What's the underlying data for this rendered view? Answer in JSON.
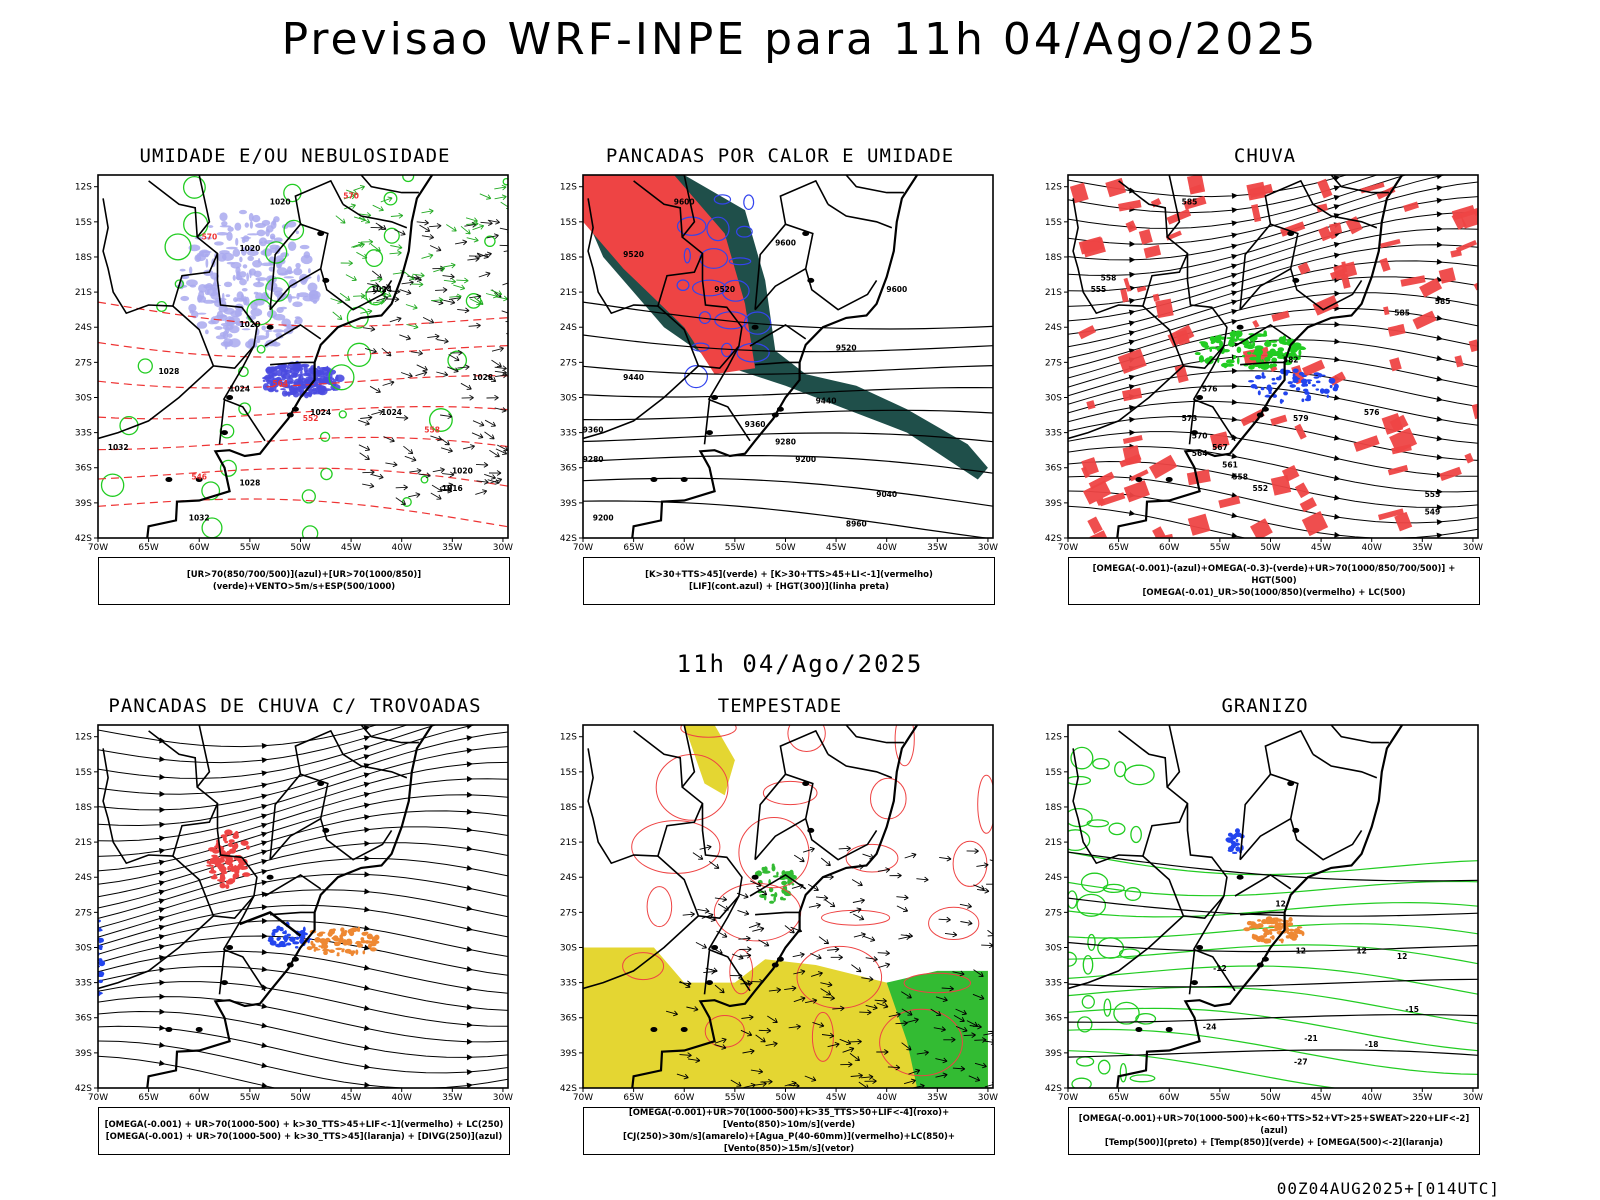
{
  "title": "Previsao WRF-INPE  para 11h 04/Ago/2025",
  "mid_time": "11h 04/Ago/2025",
  "footer": "00Z04AUG2025+[014UTC]",
  "lat_labels": [
    "12S",
    "15S",
    "18S",
    "21S",
    "24S",
    "27S",
    "30S",
    "33S",
    "36S",
    "39S",
    "42S"
  ],
  "lon_labels": [
    "70W",
    "65W",
    "60W",
    "55W",
    "50W",
    "45W",
    "40W",
    "35W",
    "30W"
  ],
  "panels": [
    {
      "title": "UMIDADE E/OU NEBULOSIDADE",
      "legend": [
        "[UR>70(850/700/500)](azul)+[UR>70(1000/850)](verde)+VENTO>5m/s+ESP(500/1000)"
      ],
      "labels": [
        {
          "t": "1020",
          "lat": -17.5,
          "lon": -55,
          "c": "#000"
        },
        {
          "t": "1020",
          "lat": -13.5,
          "lon": -52,
          "c": "#000"
        },
        {
          "t": "1020",
          "lat": -24,
          "lon": -55,
          "c": "#000"
        },
        {
          "t": "1024",
          "lat": -21,
          "lon": -42,
          "c": "#000"
        },
        {
          "t": "1028",
          "lat": -28.5,
          "lon": -32,
          "c": "#000"
        },
        {
          "t": "1024",
          "lat": -29.5,
          "lon": -56,
          "c": "#000"
        },
        {
          "t": "1028",
          "lat": -28,
          "lon": -63,
          "c": "#000"
        },
        {
          "t": "1024",
          "lat": -31.5,
          "lon": -48,
          "c": "#000"
        },
        {
          "t": "1024",
          "lat": -31.5,
          "lon": -41,
          "c": "#000"
        },
        {
          "t": "1032",
          "lat": -34.5,
          "lon": -68,
          "c": "#000"
        },
        {
          "t": "1028",
          "lat": -37.5,
          "lon": -55,
          "c": "#000"
        },
        {
          "t": "1032",
          "lat": -40.5,
          "lon": -60,
          "c": "#000"
        },
        {
          "t": "1016",
          "lat": -38,
          "lon": -35,
          "c": "#000"
        },
        {
          "t": "1020",
          "lat": -36.5,
          "lon": -34,
          "c": "#000"
        },
        {
          "t": "570",
          "lat": -13,
          "lon": -45,
          "c": "#e33"
        },
        {
          "t": "570",
          "lat": -16.5,
          "lon": -59,
          "c": "#e33"
        },
        {
          "t": "564",
          "lat": -29,
          "lon": -52,
          "c": "#e33"
        },
        {
          "t": "552",
          "lat": -32,
          "lon": -49,
          "c": "#e33"
        },
        {
          "t": "558",
          "lat": -33,
          "lon": -37,
          "c": "#e33"
        },
        {
          "t": "546",
          "lat": -37,
          "lon": -60,
          "c": "#e33"
        }
      ]
    },
    {
      "title": "PANCADAS POR CALOR E UMIDADE",
      "legend": [
        "[K>30+TTS>45](verde) + [K>30+TTS>45+LI<-1](vermelho)",
        "[LIF](cont.azul) + [HGT(300)](linha preta)"
      ],
      "labels": [
        {
          "t": "9600",
          "lat": -13.5,
          "lon": -60,
          "c": "#000"
        },
        {
          "t": "9600",
          "lat": -17,
          "lon": -50,
          "c": "#000"
        },
        {
          "t": "9600",
          "lat": -21,
          "lon": -39,
          "c": "#000"
        },
        {
          "t": "9520",
          "lat": -18,
          "lon": -65,
          "c": "#000"
        },
        {
          "t": "9520",
          "lat": -21,
          "lon": -56,
          "c": "#000"
        },
        {
          "t": "9520",
          "lat": -26,
          "lon": -44,
          "c": "#000"
        },
        {
          "t": "9440",
          "lat": -28.5,
          "lon": -65,
          "c": "#000"
        },
        {
          "t": "9440",
          "lat": -30.5,
          "lon": -46,
          "c": "#000"
        },
        {
          "t": "9360",
          "lat": -33,
          "lon": -69,
          "c": "#000"
        },
        {
          "t": "9360",
          "lat": -32.5,
          "lon": -53,
          "c": "#000"
        },
        {
          "t": "9280",
          "lat": -35.5,
          "lon": -69,
          "c": "#000"
        },
        {
          "t": "9280",
          "lat": -34,
          "lon": -50,
          "c": "#000"
        },
        {
          "t": "9200",
          "lat": -35.5,
          "lon": -48,
          "c": "#000"
        },
        {
          "t": "9200",
          "lat": -40.5,
          "lon": -68,
          "c": "#000"
        },
        {
          "t": "9040",
          "lat": -38.5,
          "lon": -40,
          "c": "#000"
        },
        {
          "t": "8960",
          "lat": -41,
          "lon": -43,
          "c": "#000"
        }
      ]
    },
    {
      "title": "CHUVA",
      "legend": [
        "[OMEGA(-0.001)-(azul)+OMEGA(-0.3)-(verde)+UR>70(1000/850/700/500)] + HGT(500)",
        "[OMEGA(-0.01)_UR>50(1000/850)(vermelho) + LC(500)"
      ],
      "labels": [
        {
          "t": "585",
          "lat": -13.5,
          "lon": -58,
          "c": "#000"
        },
        {
          "t": "585",
          "lat": -23,
          "lon": -37,
          "c": "#000"
        },
        {
          "t": "585",
          "lat": -22,
          "lon": -33,
          "c": "#000"
        },
        {
          "t": "582",
          "lat": -27,
          "lon": -48,
          "c": "#000"
        },
        {
          "t": "579",
          "lat": -32,
          "lon": -47,
          "c": "#000"
        },
        {
          "t": "576",
          "lat": -29.5,
          "lon": -56,
          "c": "#000"
        },
        {
          "t": "576",
          "lat": -31.5,
          "lon": -40,
          "c": "#000"
        },
        {
          "t": "573",
          "lat": -32,
          "lon": -58,
          "c": "#000"
        },
        {
          "t": "570",
          "lat": -33.5,
          "lon": -57,
          "c": "#000"
        },
        {
          "t": "567",
          "lat": -34.5,
          "lon": -55,
          "c": "#000"
        },
        {
          "t": "564",
          "lat": -35,
          "lon": -57,
          "c": "#000"
        },
        {
          "t": "561",
          "lat": -36,
          "lon": -54,
          "c": "#000"
        },
        {
          "t": "558",
          "lat": -37,
          "lon": -53,
          "c": "#000"
        },
        {
          "t": "555",
          "lat": -38.5,
          "lon": -34,
          "c": "#000"
        },
        {
          "t": "552",
          "lat": -38,
          "lon": -51,
          "c": "#000"
        },
        {
          "t": "549",
          "lat": -40,
          "lon": -34,
          "c": "#000"
        },
        {
          "t": "558",
          "lat": -20,
          "lon": -66,
          "c": "#000"
        },
        {
          "t": "555",
          "lat": -21,
          "lon": -67,
          "c": "#000"
        }
      ]
    },
    {
      "title": "PANCADAS DE CHUVA C/ TROVOADAS",
      "legend": [
        "[OMEGA(-0.001) + UR>70(1000-500) + k>30_TTS>45+LIF<-1](vermelho) + LC(250)",
        "[OMEGA(-0.001) + UR>70(1000-500) + k>30_TTS>45](laranja) + [DIVG(250)](azul)"
      ],
      "labels": []
    },
    {
      "title": "TEMPESTADE",
      "legend": [
        "[OMEGA(-0.001)+UR>70(1000-500)+k>35_TTS>50+LIF<-4](roxo)+[Vento(850)>10m/s](verde)",
        "[CJ(250)>30m/s](amarelo)+[Agua_P(40-60mm)](vermelho)+LC(850)+[Vento(850)>15m/s](vetor)"
      ],
      "labels": []
    },
    {
      "title": "GRANIZO",
      "legend": [
        "[OMEGA(-0.001)+UR>70(1000-500)+k<60+TTS>52+VT>25+SWEAT>220+LIF<-2](azul)",
        "[Temp(500)](preto) + [Temp(850)](verde) + [OMEGA(500)<-2](laranja)"
      ],
      "labels": [
        {
          "t": "12",
          "lat": -26.5,
          "lon": -49,
          "c": "#000"
        },
        {
          "t": "12",
          "lat": -30.5,
          "lon": -47,
          "c": "#000"
        },
        {
          "t": "12",
          "lat": -30.5,
          "lon": -41,
          "c": "#000"
        },
        {
          "t": "12",
          "lat": -31,
          "lon": -37,
          "c": "#000"
        },
        {
          "t": "-12",
          "lat": -32,
          "lon": -55,
          "c": "#000"
        },
        {
          "t": "-15",
          "lat": -35.5,
          "lon": -36,
          "c": "#000"
        },
        {
          "t": "-18",
          "lat": -38.5,
          "lon": -40,
          "c": "#000"
        },
        {
          "t": "-21",
          "lat": -38,
          "lon": -46,
          "c": "#000"
        },
        {
          "t": "-24",
          "lat": -37,
          "lon": -56,
          "c": "#000"
        },
        {
          "t": "-27",
          "lat": -40,
          "lon": -47,
          "c": "#000"
        }
      ]
    }
  ]
}
